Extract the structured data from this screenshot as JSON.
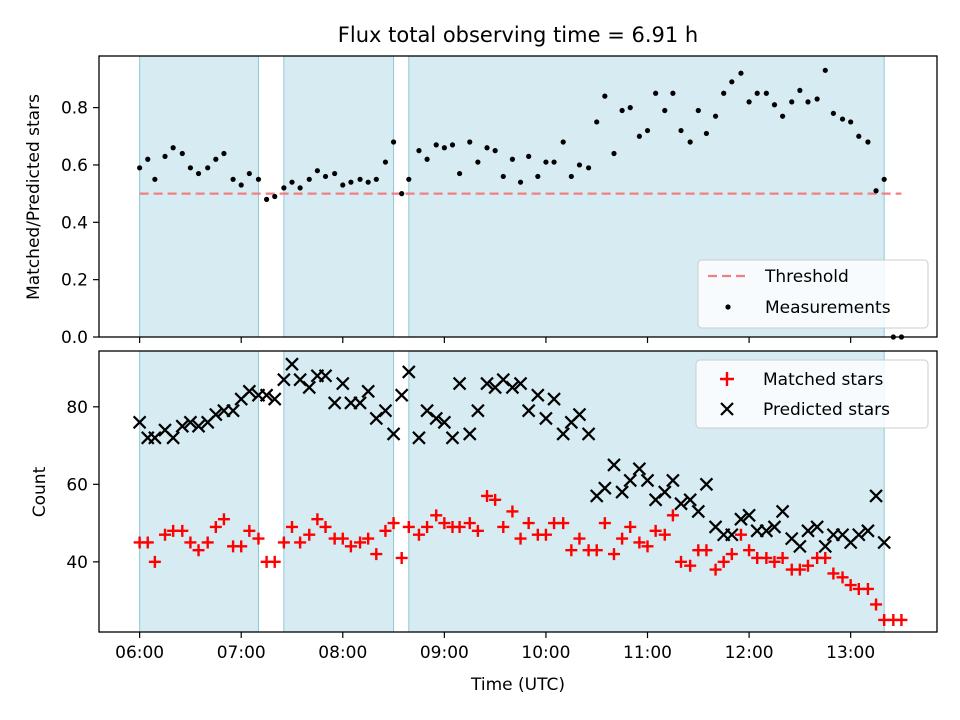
{
  "chart_data": {
    "title": "Flux total observing time = 6.91 h",
    "xlabel": "Time (UTC)",
    "x_unit": "hours since 00:00 UTC",
    "xlim": [
      5.6,
      13.85
    ],
    "xticks": [
      6,
      7,
      8,
      9,
      10,
      11,
      12,
      13
    ],
    "xtick_labels": [
      "06:00",
      "07:00",
      "08:00",
      "09:00",
      "10:00",
      "11:00",
      "12:00",
      "13:00"
    ],
    "observing_windows": [
      [
        6.0,
        7.17
      ],
      [
        7.42,
        8.5
      ],
      [
        8.65,
        13.33
      ]
    ],
    "top": {
      "type": "scatter",
      "ylabel": "Matched/Predicted stars",
      "ylim": [
        0,
        0.98
      ],
      "yticks": [
        0.0,
        0.2,
        0.4,
        0.6,
        0.8
      ],
      "ytick_labels": [
        "0.0",
        "0.2",
        "0.4",
        "0.6",
        "0.8"
      ],
      "threshold_value": 0.5,
      "legend": {
        "position": "bottom-right",
        "threshold_label": "Threshold",
        "measurements_label": "Measurements"
      },
      "measurements": {
        "x": [
          6.0,
          6.08,
          6.15,
          6.25,
          6.33,
          6.42,
          6.5,
          6.58,
          6.67,
          6.75,
          6.83,
          6.92,
          7.0,
          7.08,
          7.17,
          7.25,
          7.33,
          7.42,
          7.5,
          7.58,
          7.67,
          7.75,
          7.83,
          7.92,
          8.0,
          8.08,
          8.17,
          8.25,
          8.33,
          8.42,
          8.5,
          8.58,
          8.65,
          8.75,
          8.83,
          8.92,
          9.0,
          9.08,
          9.15,
          9.25,
          9.33,
          9.42,
          9.5,
          9.58,
          9.67,
          9.75,
          9.83,
          9.92,
          10.0,
          10.08,
          10.17,
          10.25,
          10.33,
          10.42,
          10.5,
          10.58,
          10.67,
          10.75,
          10.83,
          10.92,
          11.0,
          11.08,
          11.17,
          11.25,
          11.33,
          11.42,
          11.5,
          11.58,
          11.67,
          11.75,
          11.83,
          11.92,
          12.0,
          12.08,
          12.17,
          12.25,
          12.33,
          12.42,
          12.5,
          12.58,
          12.67,
          12.75,
          12.83,
          12.92,
          13.0,
          13.08,
          13.17,
          13.25,
          13.33,
          13.42,
          13.5
        ],
        "y": [
          0.59,
          0.62,
          0.55,
          0.63,
          0.66,
          0.64,
          0.59,
          0.57,
          0.59,
          0.62,
          0.64,
          0.55,
          0.53,
          0.57,
          0.55,
          0.48,
          0.49,
          0.52,
          0.54,
          0.52,
          0.55,
          0.58,
          0.56,
          0.57,
          0.53,
          0.54,
          0.55,
          0.54,
          0.55,
          0.61,
          0.68,
          0.5,
          0.55,
          0.65,
          0.62,
          0.67,
          0.66,
          0.67,
          0.57,
          0.68,
          0.61,
          0.66,
          0.65,
          0.56,
          0.62,
          0.54,
          0.63,
          0.56,
          0.61,
          0.61,
          0.68,
          0.56,
          0.6,
          0.59,
          0.75,
          0.84,
          0.64,
          0.79,
          0.8,
          0.7,
          0.72,
          0.85,
          0.79,
          0.85,
          0.72,
          0.68,
          0.79,
          0.71,
          0.77,
          0.85,
          0.89,
          0.92,
          0.82,
          0.85,
          0.85,
          0.81,
          0.77,
          0.82,
          0.86,
          0.82,
          0.83,
          0.93,
          0.78,
          0.76,
          0.75,
          0.7,
          0.68,
          0.51,
          0.55,
          0.0,
          0.0
        ]
      }
    },
    "bottom": {
      "type": "scatter",
      "ylabel": "Count",
      "ylim": [
        21.9,
        94.4
      ],
      "yticks": [
        40,
        60,
        80
      ],
      "ytick_labels": [
        "40",
        "60",
        "80"
      ],
      "legend": {
        "position": "top-right",
        "matched_label": "Matched stars",
        "predicted_label": "Predicted stars"
      },
      "matched": {
        "x": [
          6.0,
          6.08,
          6.15,
          6.25,
          6.33,
          6.42,
          6.5,
          6.58,
          6.67,
          6.75,
          6.83,
          6.92,
          7.0,
          7.08,
          7.17,
          7.25,
          7.33,
          7.42,
          7.5,
          7.58,
          7.67,
          7.75,
          7.83,
          7.92,
          8.0,
          8.08,
          8.17,
          8.25,
          8.33,
          8.42,
          8.5,
          8.58,
          8.65,
          8.75,
          8.83,
          8.92,
          9.0,
          9.08,
          9.15,
          9.25,
          9.33,
          9.42,
          9.5,
          9.58,
          9.67,
          9.75,
          9.83,
          9.92,
          10.0,
          10.08,
          10.17,
          10.25,
          10.33,
          10.42,
          10.5,
          10.58,
          10.67,
          10.75,
          10.83,
          10.92,
          11.0,
          11.08,
          11.17,
          11.25,
          11.33,
          11.42,
          11.5,
          11.58,
          11.67,
          11.75,
          11.83,
          11.92,
          12.0,
          12.08,
          12.17,
          12.25,
          12.33,
          12.42,
          12.5,
          12.58,
          12.67,
          12.75,
          12.83,
          12.92,
          13.0,
          13.08,
          13.17,
          13.25,
          13.33,
          13.42,
          13.5
        ],
        "y": [
          45,
          45,
          40,
          47,
          48,
          48,
          45,
          43,
          45,
          49,
          51,
          44,
          44,
          48,
          46,
          40,
          40,
          45,
          49,
          45,
          47,
          51,
          49,
          46,
          46,
          44,
          45,
          46,
          42,
          48,
          50,
          41,
          49,
          47,
          49,
          52,
          50,
          49,
          49,
          50,
          48,
          57,
          56,
          49,
          53,
          46,
          50,
          47,
          47,
          50,
          50,
          43,
          46,
          43,
          43,
          50,
          42,
          46,
          49,
          45,
          44,
          48,
          47,
          52,
          40,
          39,
          43,
          43,
          38,
          40,
          42,
          47,
          43,
          41,
          41,
          40,
          41,
          38,
          38,
          39,
          41,
          41,
          37,
          36,
          34,
          33,
          33,
          29,
          25,
          25,
          25
        ]
      },
      "predicted": {
        "x": [
          6.0,
          6.08,
          6.15,
          6.25,
          6.33,
          6.42,
          6.5,
          6.58,
          6.67,
          6.75,
          6.83,
          6.92,
          7.0,
          7.08,
          7.17,
          7.25,
          7.33,
          7.42,
          7.5,
          7.58,
          7.67,
          7.75,
          7.83,
          7.92,
          8.0,
          8.08,
          8.17,
          8.25,
          8.33,
          8.42,
          8.5,
          8.58,
          8.65,
          8.75,
          8.83,
          8.92,
          9.0,
          9.08,
          9.15,
          9.25,
          9.33,
          9.42,
          9.5,
          9.58,
          9.67,
          9.75,
          9.83,
          9.92,
          10.0,
          10.08,
          10.17,
          10.25,
          10.33,
          10.42,
          10.5,
          10.58,
          10.67,
          10.75,
          10.83,
          10.92,
          11.0,
          11.08,
          11.17,
          11.25,
          11.33,
          11.42,
          11.5,
          11.58,
          11.67,
          11.75,
          11.83,
          11.92,
          12.0,
          12.08,
          12.17,
          12.25,
          12.33,
          12.42,
          12.5,
          12.58,
          12.67,
          12.75,
          12.83,
          12.92,
          13.0,
          13.08,
          13.17,
          13.25,
          13.33
        ],
        "y": [
          76,
          72,
          72,
          74,
          72,
          75,
          76,
          75,
          76,
          78,
          79,
          79,
          82,
          84,
          83,
          83,
          82,
          87,
          91,
          87,
          85,
          88,
          88,
          81,
          86,
          81,
          81,
          84,
          77,
          79,
          73,
          83,
          89,
          72,
          79,
          77,
          76,
          72,
          86,
          73,
          79,
          86,
          85,
          87,
          85,
          86,
          79,
          83,
          77,
          82,
          73,
          76,
          78,
          73,
          57,
          59,
          65,
          58,
          61,
          64,
          61,
          56,
          58,
          61,
          55,
          56,
          53,
          60,
          49,
          47,
          47,
          51,
          52,
          48,
          48,
          49,
          53,
          46,
          44,
          48,
          49,
          44,
          47,
          47,
          45,
          47,
          48,
          57,
          45
        ]
      }
    }
  }
}
